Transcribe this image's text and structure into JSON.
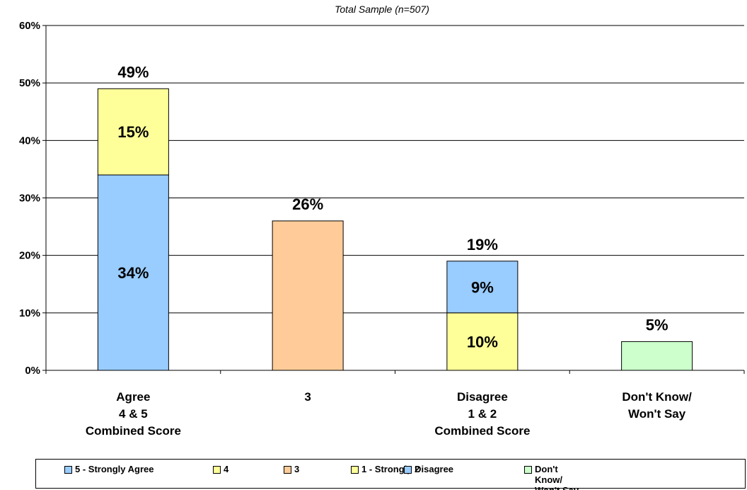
{
  "chart_data": {
    "type": "stacked_bar",
    "title": "Total Sample (n=507)",
    "categories": [
      [
        "Agree",
        "4 & 5",
        "Combined Score"
      ],
      [
        "3"
      ],
      [
        "Disagree",
        "1 & 2",
        "Combined Score"
      ],
      [
        "Don't Know/",
        "Won't Say"
      ]
    ],
    "series": [
      {
        "name": "5 - Strongly Agree",
        "color": "#99ccff",
        "values": [
          34,
          null,
          null,
          null
        ],
        "value_labels": [
          "34%",
          null,
          null,
          null
        ]
      },
      {
        "name": "4",
        "color": "#ffff99",
        "values": [
          15,
          null,
          null,
          null
        ],
        "value_labels": [
          "15%",
          null,
          null,
          null
        ]
      },
      {
        "name": "3",
        "color": "#ffcc99",
        "values": [
          null,
          26,
          null,
          null
        ],
        "value_labels": [
          null,
          null,
          null,
          null
        ]
      },
      {
        "name": "1 - Strongly Disagree",
        "color": "#ffff99",
        "values": [
          null,
          null,
          10,
          null
        ],
        "value_labels": [
          null,
          null,
          "10%",
          null
        ]
      },
      {
        "name": "2",
        "color": "#99ccff",
        "values": [
          null,
          null,
          9,
          null
        ],
        "value_labels": [
          null,
          null,
          "9%",
          null
        ]
      },
      {
        "name": "Don't Know/ Won't Say",
        "color": "#ccffcc",
        "values": [
          null,
          null,
          null,
          5
        ],
        "value_labels": [
          null,
          null,
          null,
          null
        ]
      }
    ],
    "totals": [
      49,
      26,
      19,
      5
    ],
    "total_labels": [
      "49%",
      "26%",
      "19%",
      "5%"
    ],
    "ylim": [
      0,
      60
    ],
    "yticks": [
      {
        "value": 0,
        "label": "0%"
      },
      {
        "value": 10,
        "label": "10%"
      },
      {
        "value": 20,
        "label": "20%"
      },
      {
        "value": 30,
        "label": "30%"
      },
      {
        "value": 40,
        "label": "40%"
      },
      {
        "value": 50,
        "label": "50%"
      },
      {
        "value": 60,
        "label": "60%"
      }
    ],
    "grid": true
  }
}
